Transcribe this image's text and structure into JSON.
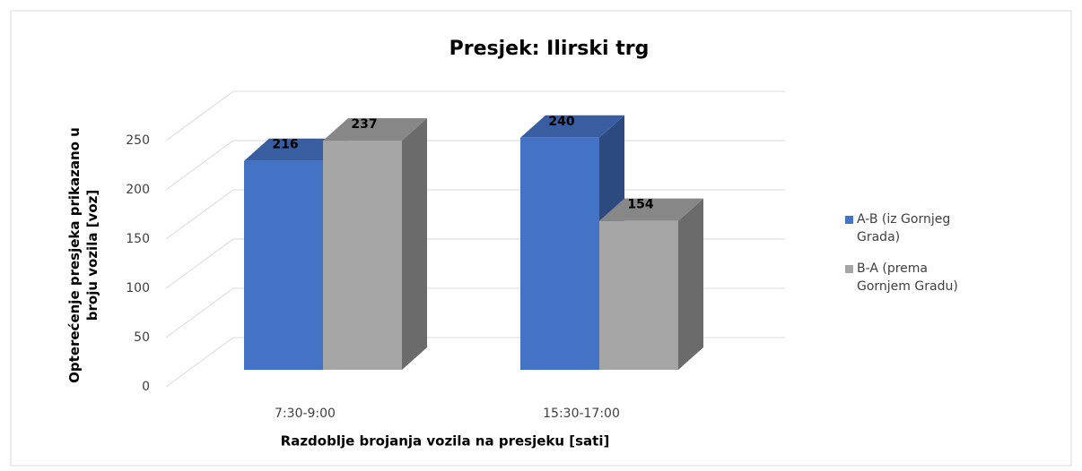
{
  "chart_data": {
    "type": "bar3d",
    "title": "Presjek: Ilirski trg",
    "x_label": "Razdoblje brojanja vozila na presjeku [sati]",
    "y_label": "Opterećenje presjeka prikazano u broju vozila [voz]",
    "categories": [
      "7:30-9:00",
      "15:30-17:00"
    ],
    "series": [
      {
        "name": "A-B (iz Gornjeg Grada)",
        "color": "#4472c4",
        "values": [
          216,
          240
        ]
      },
      {
        "name": "B-A (prema Gornjem Gradu)",
        "color": "#a5a5a5",
        "values": [
          237,
          154
        ]
      }
    ],
    "ylim": [
      0,
      250
    ],
    "yticks": [
      0,
      50,
      100,
      150,
      200,
      250
    ],
    "grid": true,
    "legend": "right"
  }
}
